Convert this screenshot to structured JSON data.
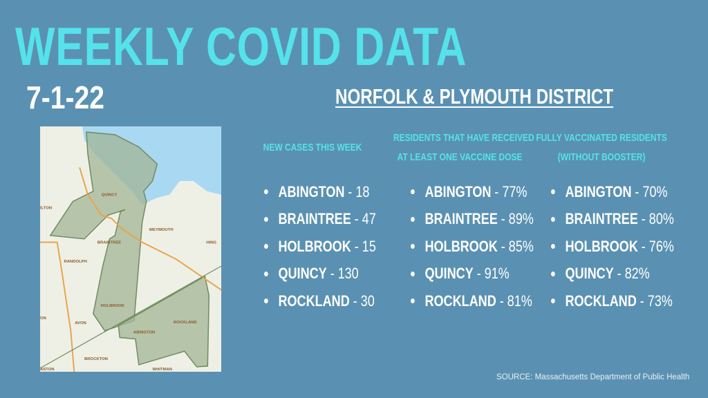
{
  "title": "WEEKLY COVID DATA",
  "date": "7-1-22",
  "district": "NORFOLK & PLYMOUTH DISTRICT",
  "columns": [
    {
      "header": [
        "NEW CASES THIS WEEK"
      ],
      "items": [
        {
          "town": "ABINGTON",
          "value": "- 18"
        },
        {
          "town": "BRAINTREE",
          "value": "- 47"
        },
        {
          "town": "HOLBROOK",
          "value": "- 15"
        },
        {
          "town": "QUINCY",
          "value": "- 130"
        },
        {
          "town": "ROCKLAND",
          "value": "- 30"
        }
      ]
    },
    {
      "header": [
        "RESIDENTS THAT HAVE RECEIVED",
        "AT LEAST ONE VACCINE DOSE"
      ],
      "items": [
        {
          "town": "ABINGTON",
          "value": "- 77%"
        },
        {
          "town": "BRAINTREE",
          "value": "- 89%"
        },
        {
          "town": "HOLBROOK",
          "value": "- 85%"
        },
        {
          "town": "QUINCY",
          "value": "- 91%"
        },
        {
          "town": "ROCKLAND",
          "value": "- 81%"
        }
      ]
    },
    {
      "header": [
        "FULLY VACCINATED RESIDENTS",
        "(WITHOUT BOOSTER)"
      ],
      "items": [
        {
          "town": "ABINGTON",
          "value": "- 70%"
        },
        {
          "town": "BRAINTREE",
          "value": "- 80%"
        },
        {
          "town": "HOLBROOK",
          "value": "- 76%"
        },
        {
          "town": "QUINCY",
          "value": "- 82%"
        },
        {
          "town": "ROCKLAND",
          "value": "- 73%"
        }
      ]
    }
  ],
  "map_labels": [
    "QUINCY",
    "ILTON",
    "WEYMOUTH",
    "BRAINTREE",
    "HING",
    "RANDOLPH",
    "HOLBROOK",
    "ON",
    "AVON",
    "ROCKLAND",
    "ABINGTON",
    "BROCKTON",
    "ASTON",
    "WHITMAN"
  ],
  "source": "SOURCE: Massachusetts Department of Public Health",
  "colors": {
    "background": "#5a91b2",
    "accent": "#55e2ea",
    "water": "#a9d8f2",
    "district": "#a3b596"
  }
}
